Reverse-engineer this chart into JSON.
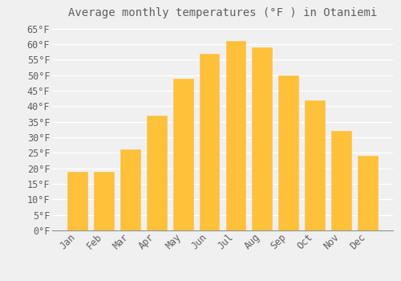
{
  "title": "Average monthly temperatures (°F ) in Otaniemi",
  "months": [
    "Jan",
    "Feb",
    "Mar",
    "Apr",
    "May",
    "Jun",
    "Jul",
    "Aug",
    "Sep",
    "Oct",
    "Nov",
    "Dec"
  ],
  "values": [
    19,
    19,
    26,
    37,
    49,
    57,
    61,
    59,
    50,
    42,
    32,
    24
  ],
  "bar_color_top": "#FFC03A",
  "bar_color_bottom": "#F5A800",
  "bar_color": "#FFC03A",
  "bar_edge_color": "#E8A000",
  "background_color": "#F0F0F0",
  "grid_color": "#FFFFFF",
  "text_color": "#606060",
  "ylim": [
    0,
    67
  ],
  "yticks": [
    0,
    5,
    10,
    15,
    20,
    25,
    30,
    35,
    40,
    45,
    50,
    55,
    60,
    65
  ],
  "title_fontsize": 10,
  "tick_fontsize": 8.5
}
